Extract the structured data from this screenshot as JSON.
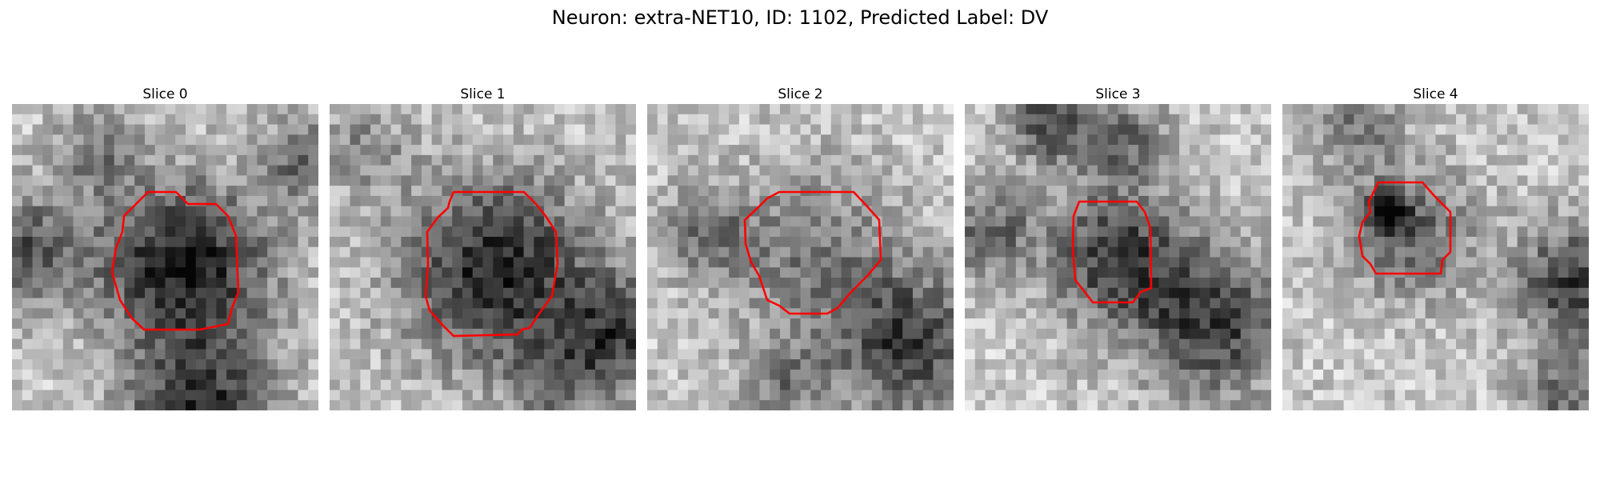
{
  "title": "Neuron: extra-NET10, ID: 1102, Predicted Label: DV",
  "colors": {
    "contour": "#ff0000",
    "background": "#ffffff"
  },
  "panels": [
    {
      "title": "Slice 0",
      "blob": "dark soma, lower-left dark region, dark arc at bottom"
    },
    {
      "title": "Slice 1",
      "blob": "dark soma, dark streak lower-right"
    },
    {
      "title": "Slice 2",
      "blob": "medium soma, dark diagonal lower-right"
    },
    {
      "title": "Slice 3",
      "blob": "smaller soma, dark band top and lower-right"
    },
    {
      "title": "Slice 4",
      "blob": "smallest soma, dark band right"
    }
  ]
}
